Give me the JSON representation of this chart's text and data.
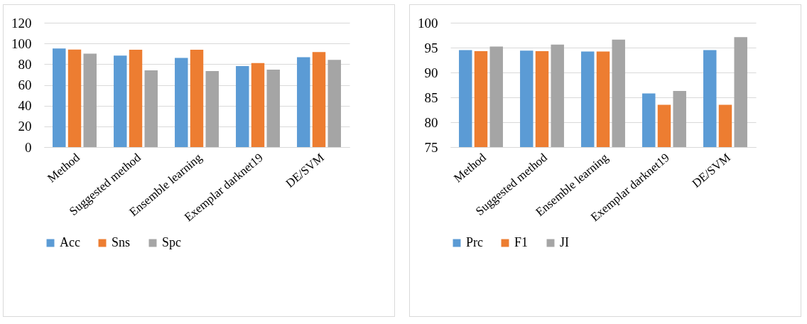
{
  "chart_data": [
    {
      "type": "bar",
      "categories": [
        "Method",
        "Suggested method",
        "Ensemble learning",
        "Exemplar darknet19",
        "DE/SVM"
      ],
      "series": [
        {
          "name": "Acc",
          "color": "#5b9bd5",
          "values": [
            95.2,
            88.3,
            86.1,
            78.2,
            86.8
          ]
        },
        {
          "name": "Sns",
          "color": "#ed7d31",
          "values": [
            94.2,
            93.9,
            93.9,
            81.1,
            91.7
          ]
        },
        {
          "name": "Spc",
          "color": "#a5a5a5",
          "values": [
            90.2,
            74.0,
            73.3,
            74.7,
            84.1
          ]
        }
      ],
      "ylim": [
        0,
        120
      ],
      "yticks": [
        0,
        20,
        40,
        60,
        80,
        100,
        120
      ],
      "grid": "y",
      "legend": "bottom"
    },
    {
      "type": "bar",
      "categories": [
        "Method",
        "Suggested method",
        "Ensemble learning",
        "Exemplar darknet19",
        "DE/SVM"
      ],
      "series": [
        {
          "name": "Prc",
          "color": "#5b9bd5",
          "values": [
            94.5,
            94.4,
            94.2,
            85.8,
            94.5
          ]
        },
        {
          "name": "F1",
          "color": "#ed7d31",
          "values": [
            94.3,
            94.3,
            94.2,
            83.5,
            83.5
          ]
        },
        {
          "name": "JI",
          "color": "#a5a5a5",
          "values": [
            95.2,
            95.6,
            96.6,
            86.3,
            97.1
          ]
        }
      ],
      "ylim": [
        75,
        100
      ],
      "yticks": [
        75,
        80,
        85,
        90,
        95,
        100
      ],
      "grid": "y",
      "legend": "bottom"
    }
  ]
}
